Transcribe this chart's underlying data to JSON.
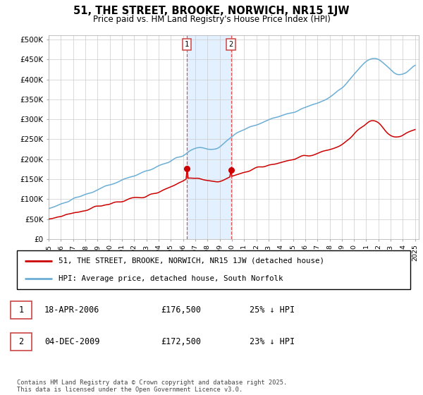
{
  "title": "51, THE STREET, BROOKE, NORWICH, NR15 1JW",
  "subtitle": "Price paid vs. HM Land Registry's House Price Index (HPI)",
  "ylabel_ticks": [
    "£0",
    "£50K",
    "£100K",
    "£150K",
    "£200K",
    "£250K",
    "£300K",
    "£350K",
    "£400K",
    "£450K",
    "£500K"
  ],
  "ytick_values": [
    0,
    50000,
    100000,
    150000,
    200000,
    250000,
    300000,
    350000,
    400000,
    450000,
    500000
  ],
  "hpi_color": "#6baed6",
  "price_color": "#cc0000",
  "sale1_date_x": 2006.3,
  "sale1_price": 176500,
  "sale1_label": "1",
  "sale2_date_x": 2009.92,
  "sale2_price": 172500,
  "sale2_label": "2",
  "shade_x1": 2006.3,
  "shade_x2": 2009.92,
  "footer_text": "Contains HM Land Registry data © Crown copyright and database right 2025.\nThis data is licensed under the Open Government Licence v3.0.",
  "legend_label1": "51, THE STREET, BROOKE, NORWICH, NR15 1JW (detached house)",
  "legend_label2": "HPI: Average price, detached house, South Norfolk",
  "table_row1": [
    "1",
    "18-APR-2006",
    "£176,500",
    "25% ↓ HPI"
  ],
  "table_row2": [
    "2",
    "04-DEC-2009",
    "£172,500",
    "23% ↓ HPI"
  ],
  "xlim_start": 1995,
  "xlim_end": 2025,
  "ylim_top": 500000,
  "hpi_seed": 10,
  "price_seed": 20
}
